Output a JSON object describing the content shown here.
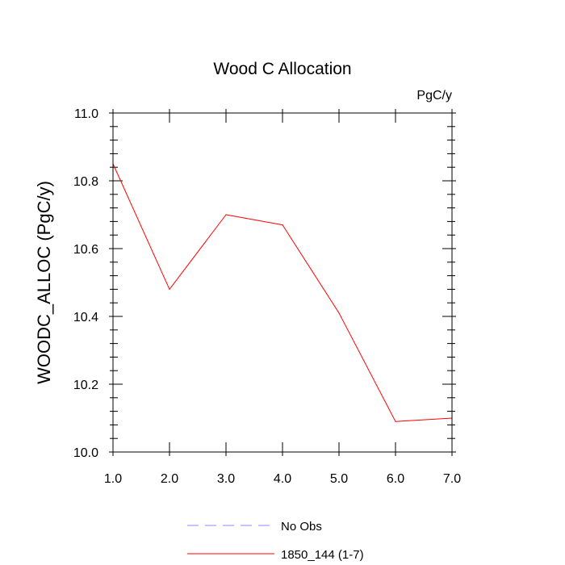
{
  "chart_data": {
    "type": "line",
    "title": "Wood C Allocation",
    "units_label": "PgC/y",
    "xlabel": "",
    "ylabel": "WOODC_ALLOC  (PgC/y)",
    "xlim": [
      1.0,
      7.0
    ],
    "ylim": [
      10.0,
      11.0
    ],
    "x_ticks": [
      1.0,
      2.0,
      3.0,
      4.0,
      5.0,
      6.0,
      7.0
    ],
    "x_tick_labels": [
      "1.0",
      "2.0",
      "3.0",
      "4.0",
      "5.0",
      "6.0",
      "7.0"
    ],
    "y_ticks": [
      10.0,
      10.2,
      10.4,
      10.6,
      10.8,
      11.0
    ],
    "y_tick_labels": [
      "10.0",
      "10.2",
      "10.4",
      "10.6",
      "10.8",
      "11.0"
    ],
    "series": [
      {
        "name": "1850_144 (1-7)",
        "color": "#ff0000",
        "style": "solid",
        "x": [
          1.0,
          2.0,
          3.0,
          4.0,
          5.0,
          6.0,
          7.0
        ],
        "values": [
          10.85,
          10.48,
          10.7,
          10.67,
          10.41,
          10.09,
          10.1
        ]
      },
      {
        "name": "No Obs",
        "color": "#8a8aff",
        "style": "dashed",
        "x": [],
        "values": []
      }
    ],
    "legend": [
      "No Obs",
      "1850_144 (1-7)"
    ],
    "legend_position": "bottom-center",
    "grid": false
  }
}
